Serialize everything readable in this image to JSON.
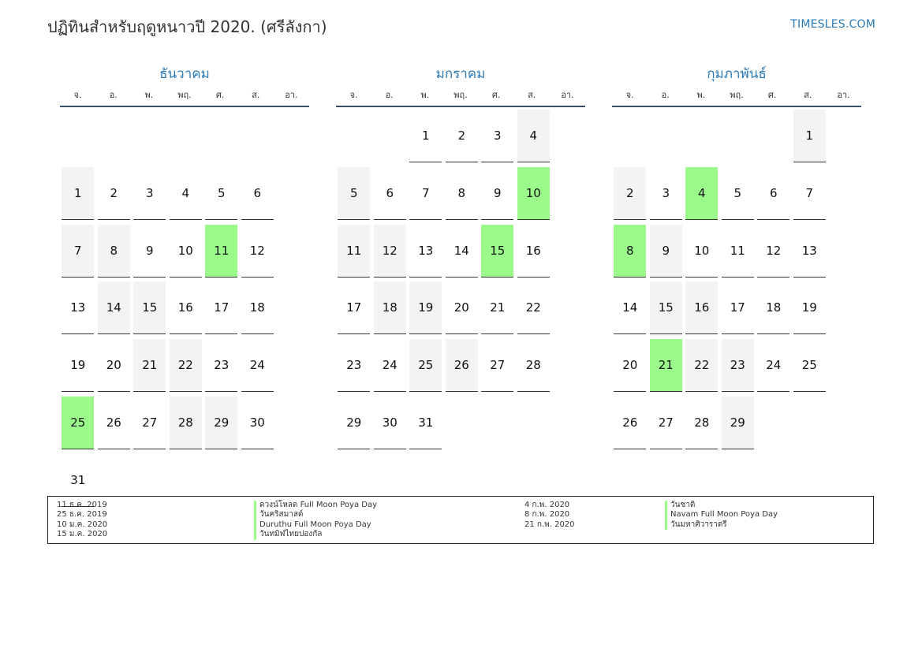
{
  "title": "ปฏิทินสำหรับฤดูหนาวปี 2020. (ศรีลังกา)",
  "brand": "TIMESLES.COM",
  "colors": {
    "accent": "#2a7ab8",
    "holiday": "#9afa8a",
    "weekend": "#f3f3f3"
  },
  "weekdays": [
    "จ.",
    "อ.",
    "พ.",
    "พฤ.",
    "ศ.",
    "ส.",
    "อา."
  ],
  "months": [
    {
      "name": "ธันวาคม",
      "cells": [
        "",
        "",
        "",
        "",
        "",
        "",
        "1",
        "2",
        "3",
        "4",
        "5",
        "6",
        "7",
        "8",
        "9",
        "10",
        "11",
        "12",
        "13",
        "14",
        "15",
        "16",
        "17",
        "18",
        "19",
        "20",
        "21",
        "22",
        "23",
        "24",
        "25",
        "26",
        "27",
        "28",
        "29",
        "30",
        "31"
      ],
      "holidays": [
        "11",
        "25"
      ]
    },
    {
      "name": "มกราคม",
      "cells": [
        "",
        "",
        "1",
        "2",
        "3",
        "4",
        "5",
        "6",
        "7",
        "8",
        "9",
        "10",
        "11",
        "12",
        "13",
        "14",
        "15",
        "16",
        "17",
        "18",
        "19",
        "20",
        "21",
        "22",
        "23",
        "24",
        "25",
        "26",
        "27",
        "28",
        "29",
        "30",
        "31"
      ],
      "holidays": [
        "10",
        "15"
      ]
    },
    {
      "name": "กุมภาพันธ์",
      "cells": [
        "",
        "",
        "",
        "",
        "",
        "1",
        "2",
        "3",
        "4",
        "5",
        "6",
        "7",
        "8",
        "9",
        "10",
        "11",
        "12",
        "13",
        "14",
        "15",
        "16",
        "17",
        "18",
        "19",
        "20",
        "21",
        "22",
        "23",
        "24",
        "25",
        "26",
        "27",
        "28",
        "29"
      ],
      "holidays": [
        "4",
        "8",
        "21"
      ]
    }
  ],
  "legend": {
    "left": [
      {
        "date": "11 ธ.ค. 2019",
        "name": "ดวงน์โหลด Full Moon Poya Day"
      },
      {
        "date": "25 ธ.ค. 2019",
        "name": "วันคริสมาสต์"
      },
      {
        "date": "10 ม.ค. 2020",
        "name": "Duruthu Full Moon Poya Day"
      },
      {
        "date": "15 ม.ค. 2020",
        "name": "วันทมิฬไทยปองกัล"
      }
    ],
    "right": [
      {
        "date": "4 ก.พ. 2020",
        "name": "วันชาติ"
      },
      {
        "date": "8 ก.พ. 2020",
        "name": "Navam Full Moon Poya Day"
      },
      {
        "date": "21 ก.พ. 2020",
        "name": "วันมหาศิวาราตรี"
      }
    ]
  }
}
